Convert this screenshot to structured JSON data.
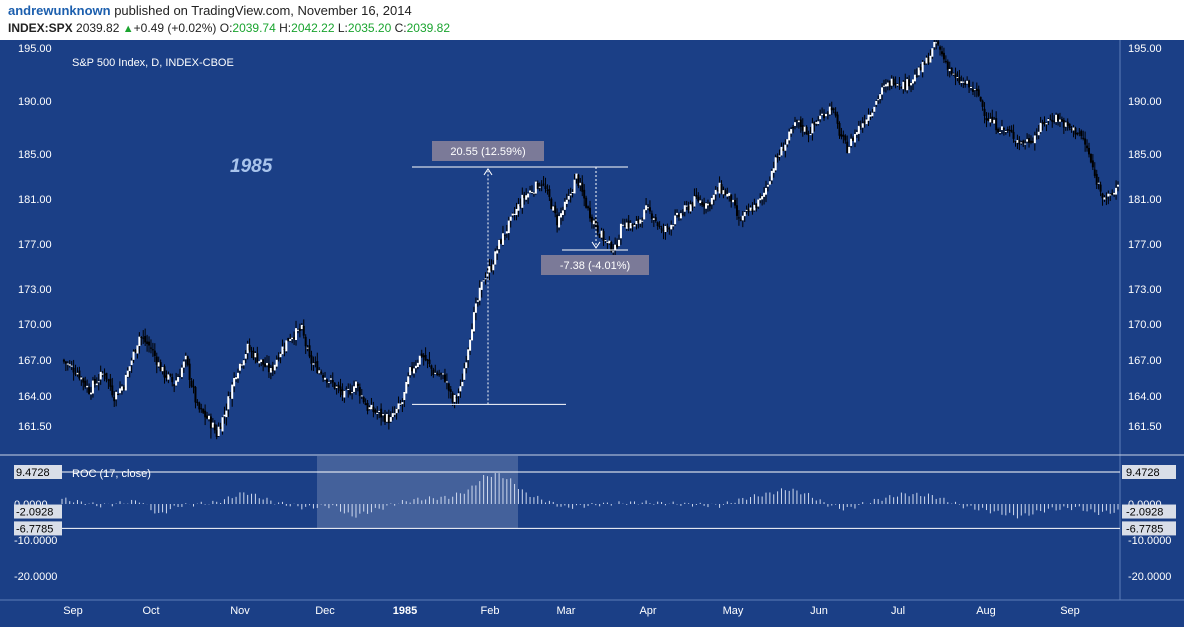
{
  "header": {
    "author": "andrewunknown",
    "published_text": "published on TradingView.com, November 16, 2014",
    "symbol": "INDEX:SPX",
    "last": "2039.82",
    "change": "+0.49 (+0.02%)",
    "o_label": "O:",
    "o_value": "2039.74",
    "h_label": "H:",
    "h_value": "2042.22",
    "l_label": "L:",
    "l_value": "2035.20",
    "c_label": "C:",
    "c_value": "2039.82"
  },
  "colors": {
    "background": "#1b3f86",
    "candle_up": "#ffffff",
    "candle_down": "#000000",
    "text": "#ffffff",
    "header_author": "#1c5fae",
    "up_green": "#1aa42f"
  },
  "chart_data": [
    {
      "type": "candlestick",
      "title": "S&P 500 Index, D, INDEX-CBOE",
      "annotation": "1985",
      "y_ticks": [
        "195.00",
        "190.00",
        "185.00",
        "181.00",
        "177.00",
        "173.00",
        "170.00",
        "167.00",
        "164.00",
        "161.50"
      ],
      "x_ticks": [
        "Sep",
        "Oct",
        "Nov",
        "Dec",
        "1985",
        "Feb",
        "Mar",
        "Apr",
        "May",
        "Jun",
        "Jul",
        "Aug",
        "Sep"
      ],
      "ylim": [
        159.5,
        196.5
      ],
      "measurements": [
        {
          "label": "20.55 (12.59%)",
          "from": 163.3,
          "to": 183.85
        },
        {
          "label": "-7.38 (-4.01%)",
          "from": 183.85,
          "to": 176.47
        }
      ],
      "close_path": [
        [
          0,
          167.0
        ],
        [
          8,
          166.0
        ],
        [
          14,
          164.5
        ],
        [
          22,
          166.0
        ],
        [
          27,
          164.0
        ],
        [
          32,
          165.0
        ],
        [
          40,
          169.0
        ],
        [
          46,
          168.0
        ],
        [
          52,
          166.0
        ],
        [
          58,
          165.0
        ],
        [
          64,
          167.0
        ],
        [
          70,
          163.0
        ],
        [
          76,
          162.0
        ],
        [
          80,
          161.0
        ],
        [
          84,
          162.5
        ],
        [
          90,
          166.0
        ],
        [
          96,
          168.0
        ],
        [
          102,
          167.0
        ],
        [
          108,
          166.0
        ],
        [
          112,
          167.5
        ],
        [
          118,
          169.0
        ],
        [
          124,
          169.5
        ],
        [
          128,
          167.0
        ],
        [
          134,
          166.0
        ],
        [
          140,
          165.0
        ],
        [
          146,
          164.0
        ],
        [
          152,
          165.0
        ],
        [
          158,
          163.0
        ],
        [
          164,
          162.5
        ],
        [
          170,
          162.0
        ],
        [
          176,
          163.5
        ],
        [
          180,
          166.0
        ],
        [
          186,
          167.5
        ],
        [
          192,
          166.0
        ],
        [
          198,
          165.5
        ],
        [
          202,
          163.5
        ],
        [
          206,
          164.5
        ],
        [
          212,
          170.0
        ],
        [
          218,
          174.0
        ],
        [
          222,
          175.0
        ],
        [
          226,
          177.0
        ],
        [
          232,
          179.0
        ],
        [
          238,
          181.0
        ],
        [
          244,
          182.0
        ],
        [
          248,
          182.5
        ],
        [
          252,
          181.0
        ],
        [
          256,
          179.0
        ],
        [
          262,
          181.0
        ],
        [
          266,
          183.0
        ],
        [
          272,
          180.0
        ],
        [
          278,
          178.0
        ],
        [
          282,
          177.0
        ],
        [
          286,
          176.5
        ],
        [
          290,
          179.0
        ],
        [
          296,
          178.5
        ],
        [
          302,
          180.0
        ],
        [
          306,
          179.5
        ],
        [
          310,
          178.0
        ],
        [
          316,
          179.0
        ],
        [
          322,
          180.0
        ],
        [
          328,
          181.0
        ],
        [
          334,
          180.5
        ],
        [
          340,
          182.0
        ],
        [
          346,
          181.0
        ],
        [
          350,
          179.0
        ],
        [
          356,
          180.0
        ],
        [
          362,
          181.0
        ],
        [
          368,
          184.0
        ],
        [
          374,
          186.0
        ],
        [
          380,
          188.0
        ],
        [
          386,
          187.0
        ],
        [
          392,
          188.5
        ],
        [
          398,
          189.5
        ],
        [
          402,
          187.0
        ],
        [
          406,
          185.5
        ],
        [
          412,
          187.5
        ],
        [
          418,
          189.0
        ],
        [
          424,
          191.0
        ],
        [
          430,
          192.0
        ],
        [
          436,
          191.5
        ],
        [
          442,
          192.5
        ],
        [
          448,
          194.0
        ],
        [
          452,
          195.5
        ],
        [
          456,
          194.0
        ],
        [
          462,
          192.0
        ],
        [
          468,
          191.5
        ],
        [
          474,
          190.5
        ],
        [
          478,
          188.5
        ],
        [
          484,
          187.5
        ],
        [
          490,
          187.0
        ],
        [
          496,
          186.0
        ],
        [
          502,
          186.5
        ],
        [
          508,
          188.0
        ],
        [
          514,
          188.5
        ],
        [
          520,
          187.5
        ],
        [
          526,
          187.0
        ],
        [
          530,
          185.5
        ],
        [
          534,
          183.0
        ],
        [
          538,
          181.5
        ],
        [
          542,
          181.0
        ],
        [
          546,
          182.3
        ]
      ],
      "total_bars": 547
    },
    {
      "type": "bar",
      "title": "ROC (17, close)",
      "y_ticks": [
        "9.4728",
        "0.0000",
        "-2.0928",
        "-6.7785",
        "-10.0000",
        "-20.0000"
      ],
      "ylim": [
        -25,
        11
      ],
      "reference_lines": [
        9.4728,
        -6.7785
      ],
      "shaded_range": [
        0.355,
        0.585
      ],
      "values_sampled": [
        [
          0,
          1.5
        ],
        [
          20,
          -0.5
        ],
        [
          40,
          1.0
        ],
        [
          50,
          -3.0
        ],
        [
          60,
          -0.5
        ],
        [
          80,
          0.5
        ],
        [
          95,
          3.5
        ],
        [
          110,
          0.5
        ],
        [
          125,
          -1.0
        ],
        [
          140,
          -0.5
        ],
        [
          150,
          -3.5
        ],
        [
          160,
          -2.0
        ],
        [
          175,
          0.5
        ],
        [
          185,
          1.5
        ],
        [
          200,
          2.0
        ],
        [
          210,
          4.0
        ],
        [
          218,
          8.0
        ],
        [
          225,
          9.0
        ],
        [
          232,
          7.0
        ],
        [
          240,
          3.0
        ],
        [
          250,
          1.0
        ],
        [
          260,
          -1.0
        ],
        [
          270,
          -0.5
        ],
        [
          280,
          0.0
        ],
        [
          300,
          0.5
        ],
        [
          320,
          0.0
        ],
        [
          340,
          -0.5
        ],
        [
          355,
          2.0
        ],
        [
          365,
          3.0
        ],
        [
          375,
          4.5
        ],
        [
          385,
          3.0
        ],
        [
          395,
          0.0
        ],
        [
          405,
          -1.5
        ],
        [
          420,
          1.0
        ],
        [
          435,
          3.0
        ],
        [
          450,
          2.5
        ],
        [
          465,
          -0.5
        ],
        [
          480,
          -2.0
        ],
        [
          495,
          -3.5
        ],
        [
          510,
          -1.5
        ],
        [
          525,
          -1.0
        ],
        [
          535,
          -2.5
        ],
        [
          546,
          -2.1
        ]
      ]
    }
  ]
}
